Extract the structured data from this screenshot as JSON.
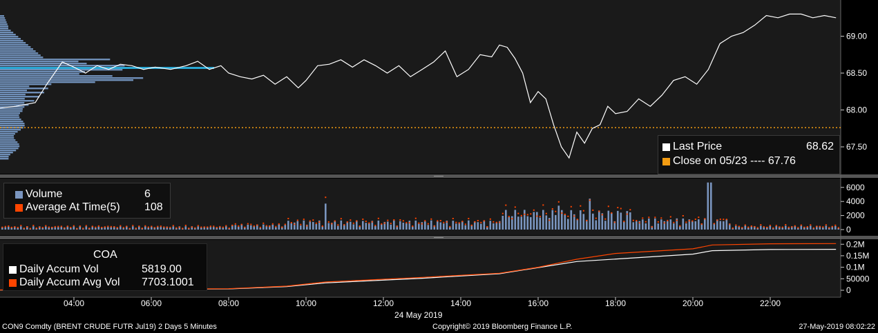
{
  "chart_data": [
    {
      "type": "line",
      "name": "price-panel",
      "ylim": [
        67.3,
        69.35
      ],
      "y_ticks": [
        "67.50",
        "68.00",
        "68.50",
        "69.00"
      ],
      "x_ticks": [
        "04:00",
        "06:00",
        "08:00",
        "10:00",
        "12:00",
        "14:00",
        "16:00",
        "18:00",
        "20:00",
        "22:00"
      ],
      "x_date_label": "24 May 2019",
      "series": [
        {
          "name": "Last Price",
          "color": "#ffffff",
          "x_hours": [
            2.0,
            2.5,
            3.0,
            3.3,
            3.7,
            4.0,
            4.3,
            4.6,
            4.9,
            5.2,
            5.5,
            5.8,
            6.1,
            6.5,
            6.9,
            7.2,
            7.5,
            7.8,
            8.0,
            8.3,
            8.6,
            8.9,
            9.2,
            9.5,
            9.8,
            10.0,
            10.3,
            10.6,
            10.9,
            11.2,
            11.5,
            11.8,
            12.1,
            12.4,
            12.7,
            13.0,
            13.3,
            13.6,
            13.9,
            14.2,
            14.5,
            14.8,
            15.0,
            15.2,
            15.4,
            15.6,
            15.8,
            16.0,
            16.2,
            16.4,
            16.6,
            16.8,
            17.0,
            17.2,
            17.4,
            17.6,
            17.8,
            18.0,
            18.3,
            18.6,
            18.9,
            19.2,
            19.5,
            19.8,
            20.1,
            20.4,
            20.7,
            21.0,
            21.3,
            21.6,
            21.9,
            22.2,
            22.5,
            22.8,
            23.1,
            23.4,
            23.7
          ],
          "values": [
            68.02,
            68.05,
            68.1,
            68.35,
            68.65,
            68.58,
            68.5,
            68.6,
            68.55,
            68.62,
            68.6,
            68.55,
            68.58,
            68.55,
            68.6,
            68.66,
            68.55,
            68.6,
            68.5,
            68.45,
            68.42,
            68.47,
            68.35,
            68.45,
            68.3,
            68.4,
            68.6,
            68.62,
            68.68,
            68.58,
            68.68,
            68.6,
            68.5,
            68.6,
            68.45,
            68.55,
            68.65,
            68.8,
            68.45,
            68.55,
            68.75,
            68.72,
            68.88,
            68.85,
            68.7,
            68.5,
            68.1,
            68.25,
            68.15,
            67.8,
            67.5,
            67.35,
            67.7,
            67.55,
            67.75,
            67.8,
            68.05,
            67.95,
            67.98,
            68.15,
            68.05,
            68.2,
            68.4,
            68.45,
            68.35,
            68.55,
            68.9,
            69.0,
            69.05,
            69.15,
            69.28,
            69.25,
            69.3,
            69.3,
            69.25,
            69.28,
            69.25
          ]
        },
        {
          "name": "Close on 05/23",
          "color": "#f39c12",
          "style": "dotted",
          "values": [
            67.76
          ]
        }
      ],
      "legend": [
        {
          "label": "Last Price",
          "value": "68.62",
          "color": "#ffffff"
        },
        {
          "label": "Close on 05/23 ---- 67.76",
          "value": "",
          "color": "#f39c12"
        }
      ],
      "volume_profile": {
        "color": "#6f8fb8",
        "highlight_color": "#29a8d4",
        "highlight_price": 68.57
      }
    },
    {
      "type": "bar",
      "name": "volume-panel",
      "ylim": [
        -200,
        6800
      ],
      "y_ticks": [
        "0",
        "2000",
        "4000",
        "6000"
      ],
      "series": [
        {
          "name": "Volume",
          "color": "#7a95bf"
        },
        {
          "name": "Average At Time(5)",
          "color": "#ff4500"
        }
      ],
      "legend": [
        {
          "label": "Volume",
          "value": "6",
          "color": "#7a95bf"
        },
        {
          "label": "Average At Time(5)",
          "value": "108",
          "color": "#ff4500"
        }
      ],
      "volume_spikes": [
        {
          "x_hours": 10.5,
          "value": 3700
        },
        {
          "x_hours": 17.3,
          "value": 4400
        },
        {
          "x_hours": 20.4,
          "value": 6700
        },
        {
          "x_hours": 16.5,
          "value": 3400
        },
        {
          "x_hours": 15.9,
          "value": 2500
        }
      ]
    },
    {
      "type": "line",
      "name": "accum-panel",
      "ylim": [
        -20000,
        220000
      ],
      "y_ticks": [
        "0",
        "50000",
        "0.1M",
        "0.15M",
        "0.2M"
      ],
      "series": [
        {
          "name": "Daily Accum Vol",
          "color": "#ffffff",
          "x_hours": [
            2,
            8,
            9.5,
            10.5,
            13,
            15,
            17,
            20,
            20.5,
            22,
            23.7
          ],
          "values": [
            1000,
            6000,
            16000,
            32000,
            52000,
            72000,
            125000,
            157000,
            172000,
            177000,
            178000
          ]
        },
        {
          "name": "Daily Accum Avg Vol",
          "color": "#ff4500",
          "x_hours": [
            2,
            8,
            9.5,
            10.5,
            13,
            15,
            16,
            17,
            18,
            20,
            20.5,
            22,
            23.7
          ],
          "values": [
            1500,
            7000,
            18000,
            36000,
            56000,
            74000,
            100000,
            135000,
            160000,
            180000,
            197000,
            202000,
            203000
          ]
        }
      ],
      "legend_title": "COA",
      "legend": [
        {
          "label": "Daily Accum Vol",
          "value": "5819.00",
          "color": "#ffffff"
        },
        {
          "label": "Daily Accum Avg Vol",
          "value": "7703.1001",
          "color": "#ff4500"
        }
      ]
    }
  ],
  "footer": {
    "left": "CON9 Comdty (BRENT CRUDE FUTR  Jul19) 2 Days 5 Minutes",
    "center": "Copyright© 2019 Bloomberg Finance L.P.",
    "right": "27-May-2019 08:02:22"
  },
  "colors": {
    "background": "#000000",
    "panel": "#1a1a1a",
    "separator": "#555555"
  }
}
